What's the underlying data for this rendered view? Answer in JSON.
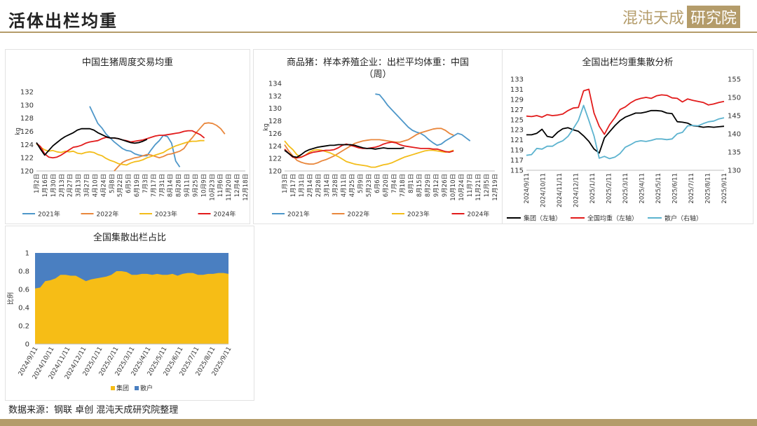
{
  "header": {
    "title": "活体出栏均重",
    "logo_text": "混沌天成",
    "logo_box": "研究院"
  },
  "footer": {
    "source": "数据来源：钢联 卓创 混沌天成研究院整理"
  },
  "colors": {
    "y2021": "#4e97c9",
    "y2022": "#e9873c",
    "y2023": "#f3bd1a",
    "y2024": "#e21b1b",
    "y2025": "#000000",
    "group": "#f6bd16",
    "retail": "#4a7fc1",
    "sanhu": "#5cb3cf"
  },
  "chart_data": [
    {
      "type": "line",
      "title": "中国生猪周度交易均重",
      "ylabel": "kg",
      "ylim": [
        120,
        132
      ],
      "yticks": [
        120,
        122,
        124,
        126,
        128,
        130,
        132
      ],
      "x_labels": [
        "1月2日",
        "1月16日",
        "1月30日",
        "2月13日",
        "2月27日",
        "3月13日",
        "3月27日",
        "4月10日",
        "4月24日",
        "5月8日",
        "5月22日",
        "6月5日",
        "6月19日",
        "7月3日",
        "7月17日",
        "7月31日",
        "8月14日",
        "8月28日",
        "9月11日",
        "9月25日",
        "10月9日",
        "10月23日",
        "11月6日",
        "11月20日",
        "12月4日",
        "12月18日"
      ],
      "legend": "bottom",
      "series": [
        {
          "name": "2021年",
          "color": "#4e97c9",
          "start": 13,
          "values": [
            129.8,
            128.5,
            127.2,
            126.5,
            125.6,
            125,
            124.4,
            123.9,
            123.4,
            123.1,
            123,
            122.6,
            122.4,
            122.3,
            122.3,
            123.2,
            124,
            124.6,
            125.4,
            125.2,
            124.2,
            121.5,
            120.6
          ]
        },
        {
          "name": "2022年",
          "color": "#e9873c",
          "start": 0,
          "values": [
            120.1,
            null,
            null,
            null,
            null,
            null,
            null,
            null,
            null,
            null,
            null,
            null,
            null,
            null,
            null,
            null,
            null,
            null,
            null,
            120,
            120.7,
            121.3,
            121.6,
            121.8,
            122,
            122.1,
            122.3,
            122.5,
            122.4,
            122.2,
            122,
            122.2,
            122.5,
            122.6,
            122.8,
            123,
            123.4,
            124.3,
            125,
            125.8,
            126.5,
            127.2,
            127.3,
            127.2,
            126.9,
            126.4,
            125.6
          ]
        },
        {
          "name": "2023年",
          "color": "#f3bd1a",
          "start": 0,
          "values": [
            124.1,
            123.6,
            123.2,
            123,
            123.1,
            122.9,
            122.8,
            123,
            122.9,
            123,
            122.7,
            122.6,
            122.8,
            122.9,
            122.8,
            122.5,
            122.3,
            121.9,
            121.6,
            121.4,
            121.1,
            121,
            120.9,
            121.2,
            121.4,
            121.5,
            121.7,
            122,
            122.2,
            122.4,
            122.6,
            122.8,
            123.2,
            123.5,
            123.8,
            124,
            124.2,
            124.4,
            124.5,
            124.5,
            124.6,
            124.6
          ]
        },
        {
          "name": "2024年",
          "color": "#e21b1b",
          "start": 0,
          "values": [
            124.2,
            123.7,
            122.6,
            122.1,
            122,
            122.1,
            122.4,
            122.8,
            123.2,
            123.6,
            123.7,
            123.9,
            124.2,
            124.4,
            124.5,
            124.6,
            124.9,
            125.1,
            125,
            125,
            124.9,
            124.7,
            124.6,
            124.4,
            124.5,
            124.6,
            124.7,
            124.9,
            125.1,
            125.3,
            125.4,
            125.4,
            125.5,
            125.6,
            125.7,
            125.8,
            126,
            126.1,
            126.1,
            125.8,
            125.5,
            125
          ]
        },
        {
          "name": "2025年",
          "color": "#000000",
          "start": 0,
          "values": [
            124.3,
            123.3,
            122.4,
            123.1,
            123.8,
            124.3,
            124.8,
            125.2,
            125.5,
            125.8,
            126.2,
            126.4,
            126.4,
            126.4,
            126.2,
            125.8,
            125.5,
            125.2,
            125,
            125,
            124.9,
            124.7,
            124.5,
            124.3,
            124.2,
            124.3,
            124.5,
            124.8
          ]
        }
      ]
    },
    {
      "type": "line",
      "title": "商品猪：样本养殖企业：出栏平均体重：中国",
      "subtitle": "（周）",
      "ylabel": "kg",
      "ylim": [
        120,
        134
      ],
      "yticks": [
        120,
        122,
        124,
        126,
        128,
        130,
        132,
        134
      ],
      "x_labels": [
        "1月3日",
        "1月17日",
        "1月31日",
        "2月14日",
        "2月28日",
        "3月14日",
        "3月28日",
        "4月11日",
        "4月25日",
        "5月9日",
        "5月23日",
        "6月6日",
        "6月20日",
        "7月4日",
        "7月18日",
        "8月1日",
        "8月15日",
        "8月29日",
        "9月12日",
        "9月26日",
        "10月10日",
        "10月24日",
        "11月7日",
        "11月21日",
        "12月5日",
        "12月19日"
      ],
      "legend": "bottom",
      "series": [
        {
          "name": "2021年",
          "color": "#4e97c9",
          "start": 22,
          "values": [
            132.3,
            132.2,
            131.4,
            130.5,
            129.8,
            129.1,
            128.4,
            127.7,
            127,
            126.5,
            126.2,
            126,
            125.6,
            125,
            124.5,
            124.1,
            124.3,
            124.8,
            125.2,
            125.6,
            126,
            125.8,
            125.3,
            124.8
          ]
        },
        {
          "name": "2022年",
          "color": "#e9873c",
          "start": 0,
          "values": [
            124.2,
            123.2,
            122.4,
            121.7,
            121.4,
            121.2,
            121.1,
            121.1,
            121.3,
            121.6,
            121.8,
            122.1,
            122.4,
            122.8,
            123.2,
            123.6,
            124,
            124.4,
            124.6,
            124.8,
            124.9,
            125,
            125,
            125,
            124.9,
            124.8,
            124.7,
            124.6,
            124.6,
            124.8,
            125,
            125.4,
            125.8,
            126.1,
            126.3,
            126.5,
            126.7,
            126.8,
            126.8,
            126.5,
            126,
            125.7
          ]
        },
        {
          "name": "2023年",
          "color": "#f3bd1a",
          "start": 0,
          "values": [
            124.8,
            124,
            123.4,
            122.6,
            122.2,
            122.5,
            123,
            123.3,
            123.4,
            123.3,
            123.1,
            122.9,
            122.6,
            122.3,
            121.9,
            121.5,
            121.3,
            121.1,
            121,
            120.9,
            120.8,
            120.6,
            120.6,
            120.8,
            121,
            121.1,
            121.3,
            121.6,
            121.9,
            122.2,
            122.4,
            122.6,
            122.8,
            123,
            123.2,
            123.3,
            123.3,
            123.2,
            123.1,
            123,
            123.1,
            123.3
          ]
        },
        {
          "name": "2024年",
          "color": "#e21b1b",
          "start": 0,
          "values": [
            123.5,
            122.8,
            122.2,
            122.1,
            122.2,
            122.5,
            122.8,
            123,
            123.1,
            123.2,
            123.3,
            123.3,
            123.4,
            123.7,
            124.1,
            124.3,
            124.1,
            123.9,
            123.7,
            123.6,
            123.6,
            123.7,
            123.8,
            124,
            124.3,
            124.5,
            124.6,
            124.5,
            124.2,
            124,
            123.9,
            123.8,
            123.7,
            123.6,
            123.6,
            123.6,
            123.5,
            123.5,
            123.3,
            123.1,
            123,
            123.2
          ]
        },
        {
          "name": "2025年",
          "color": "#000000",
          "start": 0,
          "values": [
            123.3,
            122.8,
            122.3,
            122.2,
            122.6,
            123.1,
            123.4,
            123.6,
            123.8,
            123.9,
            124,
            124.1,
            124.1,
            124.2,
            124.2,
            124.2,
            124.2,
            124.1,
            123.9,
            123.7,
            123.6,
            123.6,
            123.5,
            123.6,
            123.7,
            123.6,
            123.6,
            123.6,
            123.6,
            123.7
          ]
        }
      ]
    },
    {
      "type": "line",
      "title": "全国出栏均重集散分析",
      "ylim": [
        115,
        133
      ],
      "yticks": [
        115,
        117,
        119,
        121,
        123,
        125,
        127,
        129,
        131,
        133
      ],
      "y2lim": [
        130,
        155
      ],
      "y2ticks": [
        130,
        135,
        140,
        145,
        150,
        155
      ],
      "x_labels": [
        "2024/9/11",
        "2024/10/11",
        "2024/11/11",
        "2024/12/11",
        "2025/1/11",
        "2025/2/11",
        "2025/3/11",
        "2025/4/11",
        "2025/5/11",
        "2025/6/11",
        "2025/7/11",
        "2025/8/11",
        "2025/9/11"
      ],
      "legend": "bottom",
      "series": [
        {
          "name": "集团（左轴）",
          "axis": "left",
          "color": "#000000",
          "values": [
            122,
            122,
            122.3,
            123.1,
            121.7,
            121.5,
            122.5,
            123.2,
            123.4,
            123,
            122.7,
            121.8,
            120.7,
            119.2,
            118.4,
            121.4,
            122.6,
            123.8,
            124.8,
            125.5,
            125.9,
            126.3,
            126.3,
            126.5,
            126.8,
            126.8,
            126.7,
            126.3,
            126.2,
            124.6,
            124.5,
            124.3,
            123.8,
            123.7,
            123.5,
            123.6,
            123.5,
            123.6,
            123.7
          ]
        },
        {
          "name": "全国均重（左轴）",
          "axis": "left",
          "color": "#e21b1b",
          "values": [
            125.7,
            125.6,
            125.8,
            125.5,
            126,
            125.8,
            125.9,
            126.1,
            126.8,
            127.3,
            127.4,
            130.7,
            131,
            126.3,
            123.7,
            122.1,
            124,
            125.4,
            127,
            127.5,
            128.3,
            128.9,
            129.2,
            129.4,
            129.2,
            129.7,
            129.9,
            129.8,
            129.3,
            129.2,
            128.5,
            129.1,
            128.8,
            128.6,
            128.4,
            127.9,
            128.1,
            128.4,
            128.6
          ]
        },
        {
          "name": "散户（右轴）",
          "axis": "right",
          "color": "#5cb3cf",
          "values": [
            134.1,
            134.3,
            136,
            135.8,
            136.6,
            136.6,
            137.5,
            138.1,
            139.3,
            141.4,
            143.7,
            147.8,
            143.7,
            139.4,
            133.3,
            133.8,
            133.2,
            133.6,
            134.6,
            136.3,
            137,
            137.8,
            138.1,
            137.9,
            138.2,
            138.6,
            138.6,
            138.4,
            138.6,
            140,
            140.4,
            142.2,
            142.3,
            142.2,
            142.8,
            143.3,
            143.5,
            144.1,
            144.4
          ]
        }
      ]
    },
    {
      "type": "area",
      "stacked": true,
      "title": "全国集散出栏占比",
      "ylabel": "比例",
      "ylim": [
        0,
        1
      ],
      "yticks": [
        0,
        0.2,
        0.4,
        0.6,
        0.8,
        1
      ],
      "x_labels": [
        "2024/9/11",
        "2024/10/11",
        "2024/11/11",
        "2024/12/11",
        "2025/1/11",
        "2025/2/11",
        "2025/3/11",
        "2025/4/11",
        "2025/5/11",
        "2025/6/11",
        "2025/7/11",
        "2025/8/11",
        "2025/9/11"
      ],
      "legend": "bottom",
      "series": [
        {
          "name": "集团",
          "color": "#f6bd16",
          "values": [
            0.61,
            0.62,
            0.69,
            0.7,
            0.72,
            0.76,
            0.76,
            0.75,
            0.75,
            0.72,
            0.69,
            0.71,
            0.72,
            0.73,
            0.74,
            0.76,
            0.8,
            0.8,
            0.79,
            0.76,
            0.76,
            0.77,
            0.77,
            0.76,
            0.77,
            0.76,
            0.76,
            0.77,
            0.75,
            0.77,
            0.78,
            0.78,
            0.76,
            0.76,
            0.77,
            0.77,
            0.78,
            0.78,
            0.77
          ]
        },
        {
          "name": "散户",
          "color": "#4a7fc1",
          "values": [
            0.39,
            0.38,
            0.31,
            0.3,
            0.28,
            0.24,
            0.24,
            0.25,
            0.25,
            0.28,
            0.31,
            0.29,
            0.28,
            0.27,
            0.26,
            0.24,
            0.2,
            0.2,
            0.21,
            0.24,
            0.24,
            0.23,
            0.23,
            0.24,
            0.23,
            0.24,
            0.24,
            0.23,
            0.25,
            0.23,
            0.22,
            0.22,
            0.24,
            0.24,
            0.23,
            0.23,
            0.22,
            0.22,
            0.23
          ]
        }
      ]
    }
  ]
}
